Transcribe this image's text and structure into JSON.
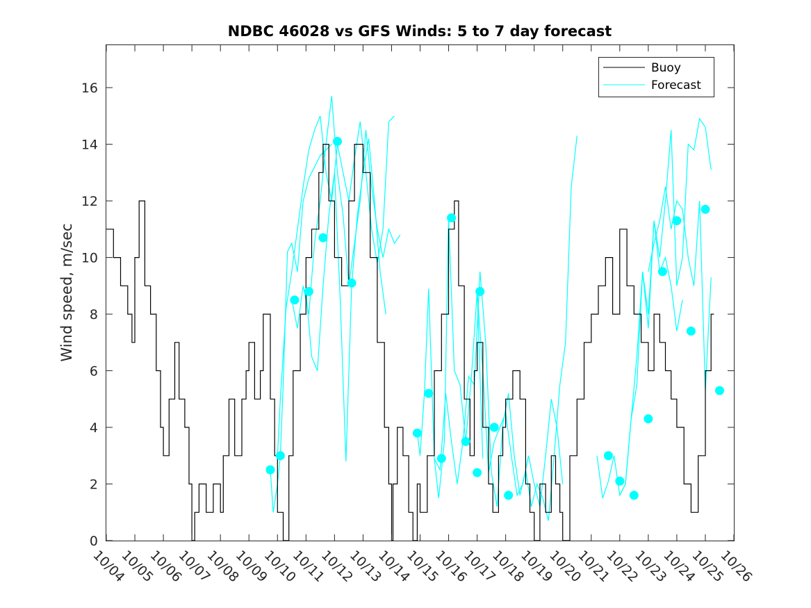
{
  "chart_data": {
    "type": "line",
    "title": "NDBC 46028 vs GFS Winds: 5 to 7 day forecast",
    "xlabel": "",
    "ylabel": "Wind speed, m/sec",
    "xlim": [
      0,
      22
    ],
    "ylim": [
      0,
      17.5
    ],
    "x_ticks": [
      "10/04",
      "10/05",
      "10/06",
      "10/07",
      "10/08",
      "10/09",
      "10/10",
      "10/11",
      "10/12",
      "10/13",
      "10/14",
      "10/15",
      "10/16",
      "10/17",
      "10/18",
      "10/19",
      "10/20",
      "10/21",
      "10/22",
      "10/23",
      "10/24",
      "10/25",
      "10/26"
    ],
    "y_ticks": [
      "0",
      "2",
      "4",
      "6",
      "8",
      "10",
      "12",
      "14",
      "16"
    ],
    "grid": false,
    "legend": {
      "position": "top-right",
      "entries": [
        "Buoy",
        "Forecast"
      ]
    },
    "colors": {
      "buoy": "#000000",
      "forecast": "#00ffff",
      "axis": "#262626"
    },
    "buoy_series": {
      "name": "Buoy",
      "x": [
        0.0,
        0.25,
        0.5,
        0.75,
        0.9,
        1.0,
        1.15,
        1.35,
        1.55,
        1.75,
        1.9,
        2.0,
        2.2,
        2.4,
        2.55,
        2.75,
        2.9,
        3.0,
        3.1,
        3.25,
        3.5,
        3.75,
        4.0,
        4.1,
        4.3,
        4.5,
        4.75,
        4.9,
        5.0,
        5.2,
        5.4,
        5.5,
        5.75,
        5.9,
        6.0,
        6.2,
        6.4,
        6.55,
        6.8,
        7.0,
        7.2,
        7.45,
        7.6,
        7.8,
        8.0,
        8.25,
        8.5,
        8.7,
        9.0,
        9.25,
        9.5,
        9.75,
        9.9,
        10.0,
        10.05,
        10.2,
        10.4,
        10.6,
        10.75,
        10.9,
        11.0,
        11.25,
        11.5,
        11.75,
        12.0,
        12.2,
        12.35,
        12.55,
        12.75,
        12.9,
        13.0,
        13.2,
        13.4,
        13.55,
        13.75,
        13.9,
        14.0,
        14.25,
        14.5,
        14.7,
        14.85,
        15.0,
        15.2,
        15.4,
        15.6,
        15.75,
        15.9,
        16.0,
        16.25,
        16.5,
        16.75,
        17.0,
        17.25,
        17.5,
        17.75,
        18.0,
        18.25,
        18.5,
        18.75,
        19.0,
        19.2,
        19.4,
        19.6,
        19.8,
        20.0,
        20.25,
        20.5,
        20.75,
        21.0,
        21.2
      ],
      "y": [
        11,
        10,
        9,
        8,
        7,
        10,
        12,
        9,
        8,
        6,
        4,
        3,
        5,
        7,
        5,
        4,
        2,
        0,
        1,
        2,
        1,
        2,
        1,
        3,
        5,
        3,
        5,
        6,
        7,
        5,
        6,
        8,
        5,
        3,
        1,
        0,
        3,
        6,
        8,
        10,
        11,
        13,
        14,
        12,
        10,
        9,
        12,
        14,
        13,
        10,
        7,
        4,
        2,
        0,
        2,
        4,
        3,
        1,
        0,
        2,
        1,
        3,
        6,
        8,
        11,
        12,
        9,
        5,
        3,
        6,
        7,
        4,
        2,
        1,
        3,
        4,
        5,
        6,
        5,
        2,
        1,
        0,
        2,
        1,
        3,
        2,
        1,
        0,
        3,
        5,
        7,
        8,
        9,
        10,
        8,
        11,
        9,
        8,
        7,
        6,
        8,
        7,
        6,
        5,
        4,
        2,
        1,
        3,
        6,
        8
      ]
    },
    "forecast_runs": [
      {
        "x": [
          5.75,
          5.85,
          6.0,
          6.1,
          6.2,
          6.35,
          6.5,
          6.7,
          6.9,
          7.1,
          7.3,
          7.5,
          7.7,
          7.9
        ],
        "y": [
          2.5,
          1.0,
          2.0,
          3.0,
          5.5,
          10.2,
          10.5,
          9.5,
          12.0,
          12.8,
          13.2,
          13.6,
          13.8,
          14.0
        ]
      },
      {
        "x": [
          6.0,
          6.1,
          6.3,
          6.5,
          6.7,
          6.9,
          7.1,
          7.3,
          7.5,
          7.7,
          7.9,
          8.1,
          8.3,
          8.5,
          8.7,
          8.9,
          9.1,
          9.3,
          9.5,
          9.7,
          9.9,
          10.1
        ],
        "y": [
          3.0,
          5.0,
          8.2,
          9.5,
          11.0,
          12.5,
          13.8,
          14.5,
          15.0,
          13.0,
          12.0,
          14.0,
          13.0,
          12.0,
          13.5,
          14.8,
          13.0,
          11.0,
          9.8,
          11.0,
          14.8,
          15.0
        ]
      },
      {
        "x": [
          6.5,
          6.7,
          6.9,
          7.1,
          7.3,
          7.5,
          7.7,
          7.9,
          8.1,
          8.3,
          8.5,
          8.7,
          8.9,
          9.1,
          9.3,
          9.5,
          9.7,
          9.9,
          10.1,
          10.3
        ],
        "y": [
          8.5,
          7.5,
          9.0,
          8.0,
          10.5,
          12.0,
          14.0,
          15.7,
          13.0,
          11.5,
          9.0,
          10.5,
          12.0,
          14.5,
          12.5,
          11.0,
          10.0,
          11.0,
          10.5,
          10.8
        ]
      },
      {
        "x": [
          7.0,
          7.2,
          7.4,
          7.6,
          7.8,
          8.0,
          8.2,
          8.4,
          8.6,
          8.8,
          9.0,
          9.2,
          9.4,
          9.6,
          9.8
        ],
        "y": [
          8.8,
          6.5,
          6.0,
          9.0,
          11.5,
          13.0,
          8.5,
          2.8,
          9.0,
          11.5,
          13.0,
          14.2,
          12.0,
          9.5,
          8.0
        ]
      },
      {
        "x": [
          10.9,
          11.0,
          11.15,
          11.3,
          11.5,
          11.65,
          11.85,
          12.0,
          12.2,
          12.4,
          12.6,
          12.8,
          13.0,
          13.2
        ],
        "y": [
          3.8,
          3.0,
          5.2,
          8.9,
          2.9,
          1.5,
          3.5,
          11.4,
          6.0,
          5.5,
          3.5,
          5.8,
          8.8,
          2.9
        ]
      },
      {
        "x": [
          11.5,
          11.7,
          11.9,
          12.1,
          12.3,
          12.5,
          12.7,
          12.9,
          13.1,
          13.3,
          13.5,
          13.7,
          13.9,
          14.1,
          14.3,
          14.5,
          14.7,
          14.9,
          15.1,
          15.3,
          15.5,
          15.7,
          15.9,
          16.1,
          16.3,
          16.5
        ],
        "y": [
          2.9,
          2.5,
          5.2,
          3.5,
          2.0,
          3.5,
          5.8,
          5.5,
          9.5,
          7.0,
          2.4,
          1.2,
          4.1,
          5.2,
          3.0,
          1.6,
          2.5,
          1.2,
          2.0,
          1.5,
          0.7,
          3.0,
          5.5,
          7.0,
          12.5,
          14.3
        ]
      },
      {
        "x": [
          13.0,
          13.2,
          13.4,
          13.6,
          13.8,
          14.0,
          14.2,
          14.4,
          14.6,
          14.8,
          15.0,
          15.2,
          15.4,
          15.6,
          15.8,
          16.0
        ],
        "y": [
          8.8,
          6.0,
          2.4,
          3.5,
          4.0,
          4.5,
          3.0,
          1.6,
          2.0,
          3.0,
          2.0,
          1.2,
          3.0,
          5.0,
          4.0,
          2.0
        ]
      },
      {
        "x": [
          17.2,
          17.4,
          17.6,
          17.8,
          18.0,
          18.2,
          18.4,
          18.6,
          18.8,
          19.0,
          19.2,
          19.4,
          19.6,
          19.8,
          20.0,
          20.2
        ],
        "y": [
          3.0,
          1.5,
          2.1,
          3.0,
          1.6,
          2.0,
          4.3,
          6.5,
          9.5,
          8.0,
          11.3,
          9.5,
          10.0,
          9.0,
          7.4,
          8.5
        ]
      },
      {
        "x": [
          18.0,
          18.2,
          18.4,
          18.6,
          18.8,
          19.0,
          19.2,
          19.4,
          19.6,
          19.8,
          20.0,
          20.2,
          20.4,
          20.6,
          20.8,
          21.0,
          21.2
        ],
        "y": [
          1.6,
          2.0,
          4.3,
          5.5,
          9.5,
          7.5,
          11.3,
          10.0,
          12.0,
          14.5,
          9.0,
          10.0,
          14.0,
          13.8,
          14.9,
          14.6,
          13.1
        ]
      },
      {
        "x": [
          19.0,
          19.2,
          19.4,
          19.6,
          19.8,
          20.0,
          20.2,
          20.4,
          20.6,
          20.8,
          21.0,
          21.2
        ],
        "y": [
          9.5,
          10.5,
          11.3,
          12.5,
          11.0,
          12.0,
          11.7,
          10.0,
          9.0,
          12.0,
          5.3,
          9.3
        ]
      }
    ],
    "forecast_markers": [
      {
        "x": 5.75,
        "y": 2.5
      },
      {
        "x": 6.1,
        "y": 3.0
      },
      {
        "x": 6.6,
        "y": 8.5
      },
      {
        "x": 7.1,
        "y": 8.8
      },
      {
        "x": 7.6,
        "y": 10.7
      },
      {
        "x": 8.1,
        "y": 14.1
      },
      {
        "x": 8.6,
        "y": 9.1
      },
      {
        "x": 10.9,
        "y": 3.8
      },
      {
        "x": 11.3,
        "y": 5.2
      },
      {
        "x": 11.75,
        "y": 2.9
      },
      {
        "x": 12.1,
        "y": 11.4
      },
      {
        "x": 12.6,
        "y": 3.5
      },
      {
        "x": 13.0,
        "y": 2.4
      },
      {
        "x": 13.1,
        "y": 8.8
      },
      {
        "x": 13.6,
        "y": 4.0
      },
      {
        "x": 14.1,
        "y": 1.6
      },
      {
        "x": 17.6,
        "y": 3.0
      },
      {
        "x": 18.0,
        "y": 2.1
      },
      {
        "x": 18.5,
        "y": 1.6
      },
      {
        "x": 19.0,
        "y": 4.3
      },
      {
        "x": 19.5,
        "y": 9.5
      },
      {
        "x": 20.0,
        "y": 11.3
      },
      {
        "x": 20.5,
        "y": 7.4
      },
      {
        "x": 21.0,
        "y": 11.7
      },
      {
        "x": 21.5,
        "y": 5.3
      }
    ]
  }
}
